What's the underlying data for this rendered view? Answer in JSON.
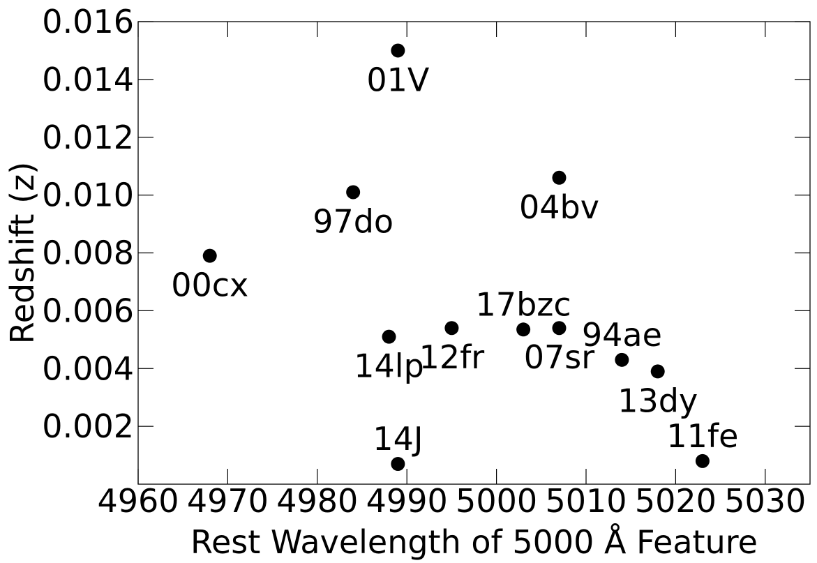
{
  "chart_data": {
    "type": "scatter",
    "title": "",
    "xlabel": "Rest Wavelength of 5000 Å Feature",
    "ylabel": "Redshift (z)",
    "xlim": [
      4960,
      5035
    ],
    "ylim": [
      0.0,
      0.016
    ],
    "x_ticks": [
      4960,
      4970,
      4980,
      4990,
      5000,
      5010,
      5020,
      5030
    ],
    "x_tick_labels": [
      "4960",
      "4970",
      "4980",
      "4990",
      "5000",
      "5010",
      "5020",
      "5030"
    ],
    "y_ticks": [
      0.002,
      0.004,
      0.006,
      0.008,
      0.01,
      0.012,
      0.014,
      0.016
    ],
    "y_tick_labels": [
      "0.002",
      "0.004",
      "0.006",
      "0.008",
      "0.010",
      "0.012",
      "0.014",
      "0.016"
    ],
    "grid": false,
    "marker_color": "#000000",
    "points": [
      {
        "label": "01V",
        "x": 4989,
        "y": 0.015,
        "label_pos": "below"
      },
      {
        "label": "04bv",
        "x": 5007,
        "y": 0.0106,
        "label_pos": "below"
      },
      {
        "label": "97do",
        "x": 4984,
        "y": 0.0101,
        "label_pos": "below"
      },
      {
        "label": "00cx",
        "x": 4968,
        "y": 0.0079,
        "label_pos": "below"
      },
      {
        "label": "17bzc",
        "x": 5003,
        "y": 0.00535,
        "label_pos": "above"
      },
      {
        "label": "07sr",
        "x": 5007,
        "y": 0.0054,
        "label_pos": "below"
      },
      {
        "label": "12fr",
        "x": 4995,
        "y": 0.0054,
        "label_pos": "below"
      },
      {
        "label": "14lp",
        "x": 4988,
        "y": 0.0051,
        "label_pos": "below"
      },
      {
        "label": "94ae",
        "x": 5014,
        "y": 0.0043,
        "label_pos": "above"
      },
      {
        "label": "13dy",
        "x": 5018,
        "y": 0.0039,
        "label_pos": "below"
      },
      {
        "label": "14J",
        "x": 4989,
        "y": 0.0007,
        "label_pos": "above"
      },
      {
        "label": "11fe",
        "x": 5023,
        "y": 0.0008,
        "label_pos": "above"
      }
    ]
  }
}
